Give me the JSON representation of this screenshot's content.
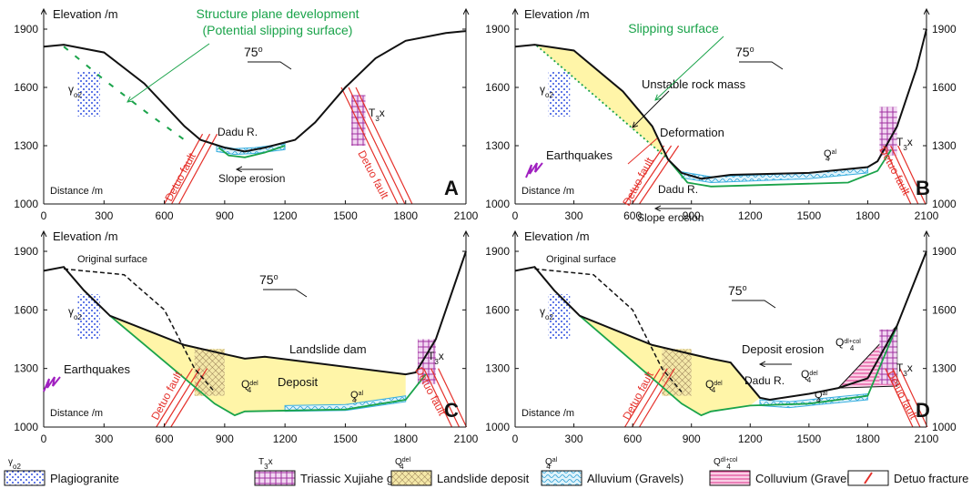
{
  "axes": {
    "y_label": "Elevation /m",
    "x_label": "Distance /m",
    "xticks": [
      0,
      300,
      600,
      900,
      1200,
      1500,
      1800,
      2100
    ],
    "yticks": [
      1000,
      1300,
      1600,
      1900
    ]
  },
  "symbols": {
    "granite": {
      "base": "γ",
      "sub": "o2"
    },
    "triassic": {
      "base": "T",
      "sub": "3",
      "tail": "x"
    },
    "deposit": {
      "base": "Q",
      "sub": "4",
      "sup": "del"
    },
    "alluvium": {
      "base": "Q",
      "sub": "4",
      "sup": "al"
    },
    "colluvium": {
      "base": "Q",
      "sub": "4",
      "sup": "dl+col"
    }
  },
  "dip": {
    "value": "75",
    "mark": "o"
  },
  "common": {
    "river": "Dadu R.",
    "fault": "Detuo fault",
    "slope_erosion": "Slope erosion",
    "earthquakes": "Earthquakes",
    "original_surface": "Original surface"
  },
  "panels": [
    {
      "letter": "A",
      "notes": [
        "Structure plane development",
        "(Potential slipping surface)"
      ]
    },
    {
      "letter": "B",
      "notes": [
        "Slipping surface",
        "Unstable rock mass",
        "Deformation"
      ]
    },
    {
      "letter": "C",
      "notes": [
        "Landslide dam",
        "Deposit"
      ]
    },
    {
      "letter": "D",
      "notes": [
        "Deposit erosion"
      ]
    }
  ],
  "legend": [
    "Plagiogranite",
    "Triassic Xujiahe group",
    "Landslide deposit",
    "Alluvium (Gravels)",
    "Colluvium (Gravels)",
    "Detuo fracture"
  ]
}
